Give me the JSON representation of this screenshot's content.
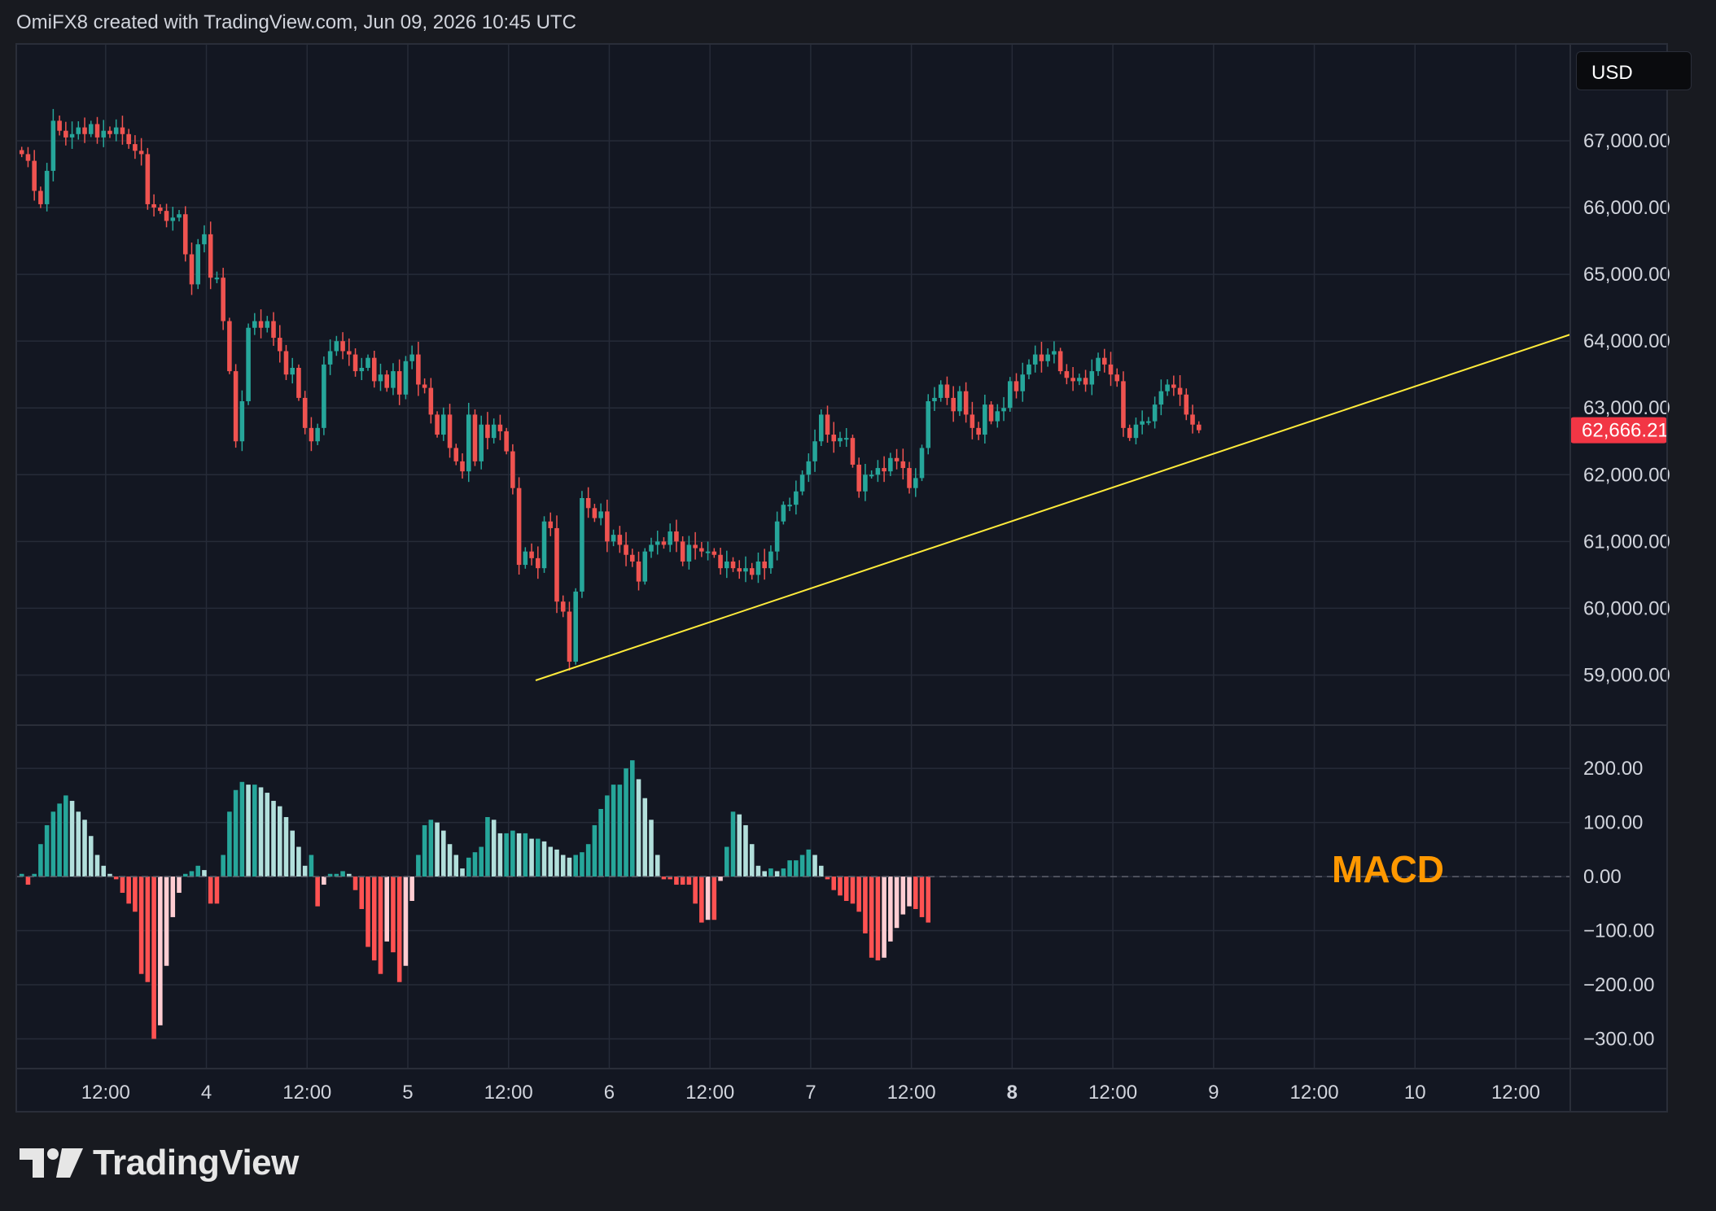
{
  "header": {
    "text": "OmiFX8 created with TradingView.com, Jun 09, 2026 10:45 UTC"
  },
  "currency": "USD",
  "brand": {
    "name": "TradingView"
  },
  "colors": {
    "background": "#181a20",
    "pane_background": "#131722",
    "grid": "#262b38",
    "up": "#26a69a",
    "down": "#ef5350",
    "hist_up_strong": "#26a69a",
    "hist_up_weak": "#b2dfdb",
    "hist_down_strong": "#ff5252",
    "hist_down_weak": "#ffcdd2",
    "trendline": "#ffeb3b",
    "last_price": "#f23645",
    "macd_label": "#ff9800"
  },
  "chart_data": [
    {
      "type": "candlestick",
      "currency": "USD",
      "x_tick_labels": [
        "12:00",
        "4",
        "12:00",
        "5",
        "12:00",
        "6",
        "12:00",
        "7",
        "12:00",
        "8",
        "12:00",
        "9",
        "12:00",
        "10",
        "12:00"
      ],
      "x_tick_times": [
        12,
        24,
        36,
        48,
        60,
        72,
        84,
        96,
        108,
        120,
        132,
        144,
        156,
        168,
        180
      ],
      "x_unit": "hours since Jun 3, 00:00",
      "y_ticks": [
        59000,
        60000,
        61000,
        62000,
        63000,
        64000,
        65000,
        66000,
        67000
      ],
      "y_tick_labels": [
        "59,000.00",
        "60,000.00",
        "61,000.00",
        "62,000.00",
        "63,000.00",
        "64,000.00",
        "65,000.00",
        "66,000.00",
        "67,000.00"
      ],
      "ylim": [
        58250,
        68450
      ],
      "xlim": [
        1.35,
        186.5
      ],
      "last_price": 62666.21,
      "last_price_label": "62,666.21",
      "candle_interval_hours": 0.75,
      "candles_start_time": 2.0,
      "closes": [
        66800,
        66700,
        66250,
        66050,
        66550,
        67300,
        67150,
        67050,
        67100,
        67200,
        67100,
        67250,
        67050,
        67150,
        67100,
        67200,
        67100,
        66950,
        66850,
        66800,
        66050,
        66000,
        65950,
        65800,
        65850,
        65900,
        65300,
        64850,
        65450,
        65600,
        64950,
        64950,
        64300,
        63550,
        62500,
        63100,
        64200,
        64300,
        64200,
        64300,
        64050,
        63850,
        63500,
        63600,
        63150,
        62700,
        62500,
        62700,
        63650,
        63850,
        64000,
        63850,
        63800,
        63550,
        63600,
        63750,
        63400,
        63500,
        63300,
        63550,
        63200,
        63700,
        63800,
        63350,
        63300,
        62900,
        62600,
        62900,
        62400,
        62200,
        62050,
        62900,
        62200,
        62750,
        62550,
        62750,
        62650,
        62350,
        61800,
        60650,
        60850,
        60750,
        60600,
        61300,
        61200,
        60100,
        59950,
        59200,
        60250,
        61650,
        61500,
        61350,
        61450,
        61000,
        61100,
        60950,
        60800,
        60700,
        60400,
        60850,
        60950,
        61000,
        60950,
        61150,
        61000,
        60700,
        60950,
        60900,
        60850,
        60850,
        60800,
        60600,
        60700,
        60600,
        60550,
        60600,
        60500,
        60700,
        60600,
        60850,
        61300,
        61550,
        61550,
        61750,
        62000,
        62200,
        62500,
        62900,
        62600,
        62500,
        62550,
        62550,
        62150,
        61750,
        62000,
        62000,
        62100,
        62050,
        62250,
        62200,
        62100,
        61800,
        61950,
        62400,
        63100,
        63150,
        63350,
        63150,
        62950,
        63250,
        62900,
        62700,
        62600,
        63050,
        62800,
        62950,
        63000,
        63400,
        63250,
        63500,
        63650,
        63800,
        63700,
        63800,
        63850,
        63550,
        63450,
        63400,
        63450,
        63350,
        63550,
        63750,
        63650,
        63500,
        63400,
        62700,
        62550,
        62750,
        62800,
        62800,
        63050,
        63250,
        63350,
        63300,
        63200,
        62900,
        62750,
        62666.21
      ],
      "macd_histogram": [
        5,
        -15,
        5,
        60,
        95,
        120,
        135,
        150,
        140,
        120,
        105,
        75,
        40,
        20,
        5,
        -5,
        -30,
        -50,
        -65,
        -180,
        -195,
        -300,
        -275,
        -165,
        -75,
        -30,
        5,
        10,
        20,
        12,
        -50,
        -50,
        40,
        120,
        160,
        175,
        170,
        170,
        165,
        155,
        140,
        130,
        110,
        85,
        55,
        20,
        40,
        -55,
        -15,
        5,
        5,
        10,
        5,
        -25,
        -60,
        -130,
        -155,
        -180,
        -120,
        -140,
        -195,
        -165,
        -45,
        40,
        95,
        105,
        100,
        85,
        60,
        40,
        15,
        35,
        45,
        55,
        110,
        105,
        80,
        80,
        85,
        80,
        80,
        70,
        70,
        65,
        55,
        50,
        40,
        35,
        40,
        45,
        60,
        95,
        125,
        150,
        170,
        170,
        200,
        215,
        180,
        145,
        105,
        40,
        -5,
        -5,
        -15,
        -15,
        -15,
        -50,
        -85,
        -80,
        -80,
        -8,
        55,
        120,
        115,
        95,
        60,
        20,
        10,
        15,
        10,
        15,
        30,
        30,
        40,
        50,
        40,
        20,
        -5,
        -25,
        -35,
        -45,
        -50,
        -65,
        -105,
        -150,
        -155,
        -150,
        -120,
        -95,
        -70,
        -55,
        -60,
        -75,
        -85
      ]
    },
    {
      "type": "bar",
      "title": "MACD",
      "y_ticks": [
        -300,
        -200,
        -100,
        0,
        100,
        200
      ],
      "y_tick_labels": [
        "−300.00",
        "−200.00",
        "−100.00",
        "0.00",
        "100.00",
        "200.00"
      ],
      "ylim": [
        -355,
        280
      ]
    }
  ]
}
